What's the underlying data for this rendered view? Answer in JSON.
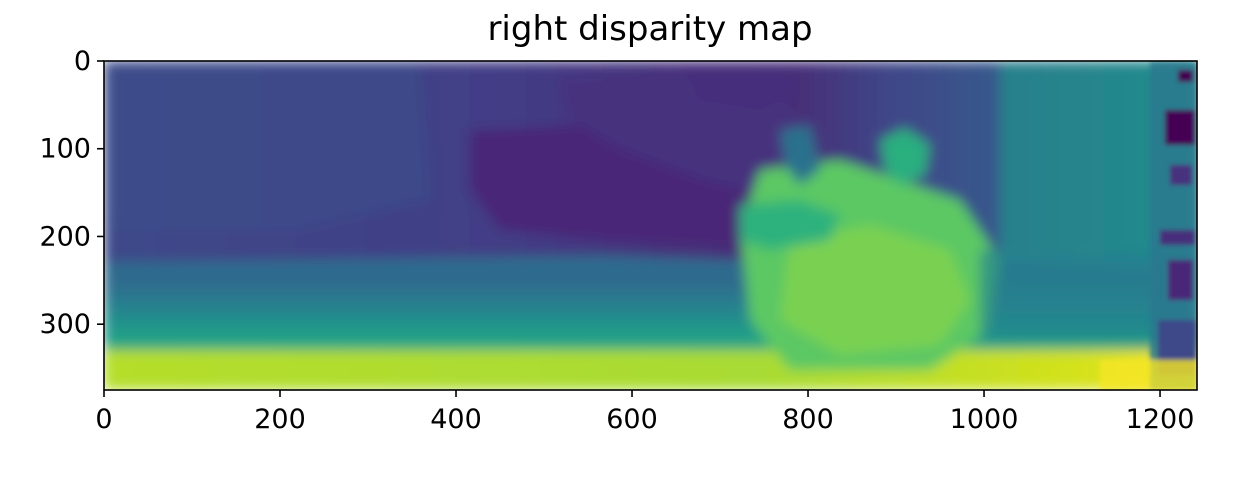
{
  "chart_data": {
    "type": "heatmap",
    "title": "right disparity map",
    "xlabel": "",
    "ylabel": "",
    "xlim": [
      0,
      1242
    ],
    "ylim": [
      375,
      0
    ],
    "colormap": "viridis",
    "xticks": [
      0,
      200,
      400,
      600,
      800,
      1000,
      1200
    ],
    "yticks": [
      0,
      100,
      200,
      300
    ],
    "grid": false,
    "legend": "none"
  },
  "colors": {
    "viridis": [
      "#440154",
      "#482878",
      "#3e4989",
      "#31688e",
      "#26828e",
      "#1f9e89",
      "#35b779",
      "#6ece58",
      "#b5de2b",
      "#fde725"
    ]
  }
}
